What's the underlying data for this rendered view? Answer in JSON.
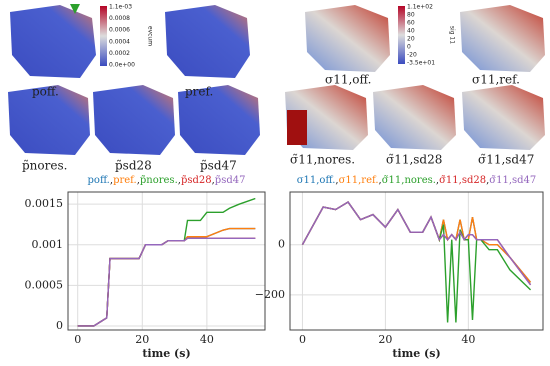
{
  "renders": {
    "left_labels": [
      "poff.",
      "pref.",
      "p̃nores.",
      "p̃sd28",
      "p̃sd47"
    ],
    "left_colorbar": {
      "title": "evcum",
      "ticks": [
        "1.1e-03",
        "0.0008",
        "0.0006",
        "0.0004",
        "0.0002",
        "0.0e+00"
      ]
    },
    "right_labels": [
      "σ11,off.",
      "σ11,ref.",
      "σ̃11,nores.",
      "σ̃11,sd28",
      "σ̃11,sd47"
    ],
    "right_colorbar": {
      "title": "sig 11",
      "ticks": [
        "1.1e+02",
        "80",
        "60",
        "40",
        "20",
        "0",
        "-20",
        "-3.5e+01"
      ]
    }
  },
  "chart_data": [
    {
      "type": "line",
      "legend_separator": ",",
      "xlabel": "time (s)",
      "x": [
        0,
        5,
        7,
        9,
        10,
        12,
        19,
        21,
        26,
        28,
        33,
        34,
        38,
        40,
        45,
        47,
        50,
        55
      ],
      "series": [
        {
          "name": "poff.",
          "color": "#1f77b4",
          "values": [
            0,
            0,
            5e-05,
            0.0001,
            0.00083,
            0.00083,
            0.00083,
            0.001,
            0.001,
            0.00105,
            0.00105,
            0.0011,
            0.0011,
            0.0011,
            0.00118,
            0.0012,
            0.0012,
            0.0012
          ]
        },
        {
          "name": "pref.",
          "color": "#ff7f0e",
          "values": [
            0,
            0,
            5e-05,
            0.0001,
            0.00083,
            0.00083,
            0.00083,
            0.001,
            0.001,
            0.00105,
            0.00105,
            0.0011,
            0.0011,
            0.0011,
            0.00118,
            0.0012,
            0.0012,
            0.0012
          ]
        },
        {
          "name": "p̃nores.",
          "color": "#2ca02c",
          "values": [
            0,
            0,
            5e-05,
            0.0001,
            0.00083,
            0.00083,
            0.00083,
            0.001,
            0.001,
            0.00105,
            0.00105,
            0.0013,
            0.0013,
            0.0014,
            0.0014,
            0.00145,
            0.0015,
            0.00157
          ]
        },
        {
          "name": "p̃sd28",
          "color": "#d62728",
          "values": [
            0,
            0,
            5e-05,
            0.0001,
            0.00083,
            0.00083,
            0.00083,
            0.001,
            0.001,
            0.00105,
            0.00105,
            0.00108,
            0.00108,
            0.00108,
            0.00108,
            0.00108,
            0.00108,
            0.00108
          ]
        },
        {
          "name": "p̃sd47",
          "color": "#9467bd",
          "values": [
            0,
            0,
            5e-05,
            0.0001,
            0.00083,
            0.00083,
            0.00083,
            0.001,
            0.001,
            0.00105,
            0.00105,
            0.00108,
            0.00108,
            0.00108,
            0.00108,
            0.00108,
            0.00108,
            0.00108
          ]
        }
      ],
      "xlim": [
        -3,
        58
      ],
      "xticks": [
        0,
        20,
        40
      ],
      "ylim": [
        -5e-05,
        0.00165
      ],
      "yticks": [
        0,
        0.0005,
        0.001,
        0.0015
      ],
      "grid": true
    },
    {
      "type": "line",
      "legend_separator": ",",
      "xlabel": "time (s)",
      "x": [
        0,
        5,
        8,
        11,
        14,
        17,
        20,
        23,
        26,
        29,
        31,
        33,
        34,
        35,
        36,
        37,
        38,
        39,
        40,
        41,
        42,
        43,
        45,
        47,
        50,
        55
      ],
      "series": [
        {
          "name": "σ11,off.",
          "color": "#1f77b4",
          "values": [
            0,
            150,
            140,
            170,
            100,
            120,
            70,
            140,
            50,
            50,
            110,
            20,
            100,
            20,
            40,
            20,
            100,
            20,
            20,
            110,
            20,
            20,
            0,
            0,
            -50,
            -150
          ]
        },
        {
          "name": "σ11,ref.",
          "color": "#ff7f0e",
          "values": [
            0,
            150,
            140,
            170,
            100,
            120,
            70,
            140,
            50,
            50,
            110,
            20,
            100,
            20,
            40,
            20,
            100,
            20,
            20,
            110,
            20,
            20,
            0,
            0,
            -50,
            -150
          ]
        },
        {
          "name": "σ̃11,nores.",
          "color": "#2ca02c",
          "values": [
            0,
            150,
            140,
            170,
            100,
            120,
            70,
            140,
            50,
            50,
            110,
            20,
            80,
            -310,
            20,
            -310,
            60,
            20,
            20,
            -300,
            20,
            20,
            -20,
            -20,
            -100,
            -180
          ]
        },
        {
          "name": "σ̃11,sd28",
          "color": "#d62728",
          "values": [
            0,
            150,
            140,
            170,
            100,
            120,
            70,
            140,
            50,
            50,
            110,
            20,
            40,
            20,
            40,
            20,
            50,
            20,
            40,
            40,
            20,
            20,
            20,
            20,
            -50,
            -160
          ]
        },
        {
          "name": "σ̃11,sd47",
          "color": "#9467bd",
          "values": [
            0,
            150,
            140,
            170,
            100,
            120,
            70,
            140,
            50,
            50,
            110,
            20,
            40,
            20,
            40,
            20,
            50,
            20,
            40,
            40,
            20,
            20,
            20,
            20,
            -50,
            -160
          ]
        }
      ],
      "xlim": [
        -3,
        58
      ],
      "xticks": [
        0,
        20,
        40
      ],
      "ylim": [
        -340,
        210
      ],
      "yticks": [
        {
          "value": -200,
          "label": "−200"
        },
        0
      ],
      "grid": true
    }
  ]
}
